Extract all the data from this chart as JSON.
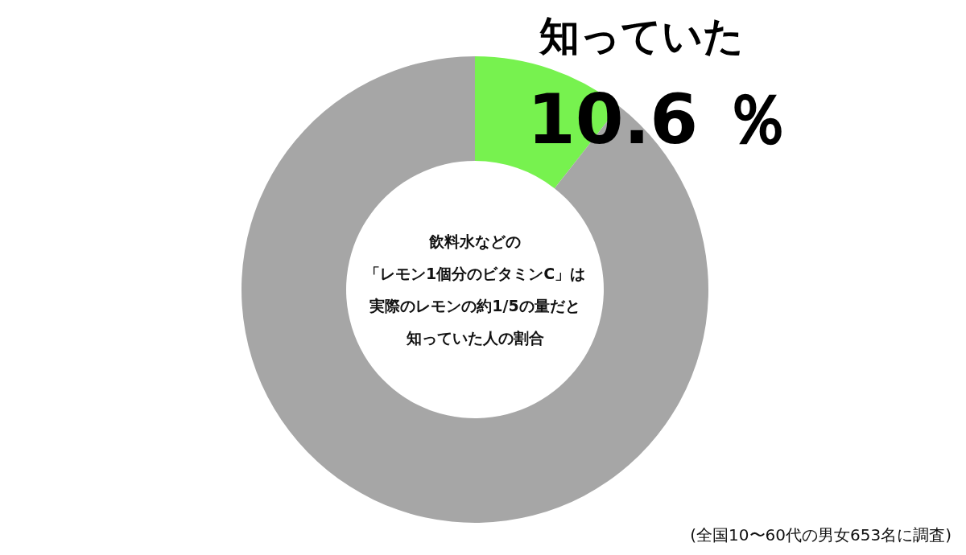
{
  "chart_data": {
    "type": "donut",
    "title": "飲料水などの「レモン1個分のビタミンC」は実際のレモンの約1/5の量だと知っていた人の割合",
    "categories": [
      "知っていた",
      null
    ],
    "values": [
      10.6,
      89.4
    ],
    "colors": [
      "#77f24f",
      "#a6a6a6"
    ],
    "value_labels": [
      "10.6 ％",
      null
    ],
    "annotations": [
      "(全国10〜60代の男女653名に調査)"
    ]
  }
}
